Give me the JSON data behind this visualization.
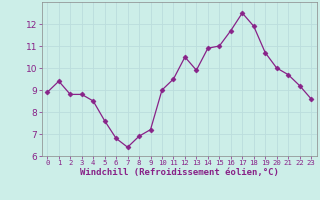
{
  "x": [
    0,
    1,
    2,
    3,
    4,
    5,
    6,
    7,
    8,
    9,
    10,
    11,
    12,
    13,
    14,
    15,
    16,
    17,
    18,
    19,
    20,
    21,
    22,
    23
  ],
  "y": [
    8.9,
    9.4,
    8.8,
    8.8,
    8.5,
    7.6,
    6.8,
    6.4,
    6.9,
    7.2,
    9.0,
    9.5,
    10.5,
    9.9,
    10.9,
    11.0,
    11.7,
    12.5,
    11.9,
    10.7,
    10.0,
    9.7,
    9.2,
    8.6
  ],
  "line_color": "#882288",
  "marker": "D",
  "marker_size": 2.5,
  "bg_color": "#cceee8",
  "grid_color": "#bbdddd",
  "xlabel": "Windchill (Refroidissement éolien,°C)",
  "xlabel_color": "#882288",
  "tick_color": "#882288",
  "spine_color": "#888888",
  "ylim": [
    6,
    13
  ],
  "xlim": [
    -0.5,
    23.5
  ],
  "yticks": [
    6,
    7,
    8,
    9,
    10,
    11,
    12
  ],
  "xticks": [
    0,
    1,
    2,
    3,
    4,
    5,
    6,
    7,
    8,
    9,
    10,
    11,
    12,
    13,
    14,
    15,
    16,
    17,
    18,
    19,
    20,
    21,
    22,
    23
  ],
  "xtick_labels": [
    "0",
    "1",
    "2",
    "3",
    "4",
    "5",
    "6",
    "7",
    "8",
    "9",
    "10",
    "11",
    "12",
    "13",
    "14",
    "15",
    "16",
    "17",
    "18",
    "19",
    "20",
    "21",
    "22",
    "23"
  ],
  "xlabel_fontsize": 6.5,
  "ytick_fontsize": 6.5,
  "xtick_fontsize": 5.2
}
